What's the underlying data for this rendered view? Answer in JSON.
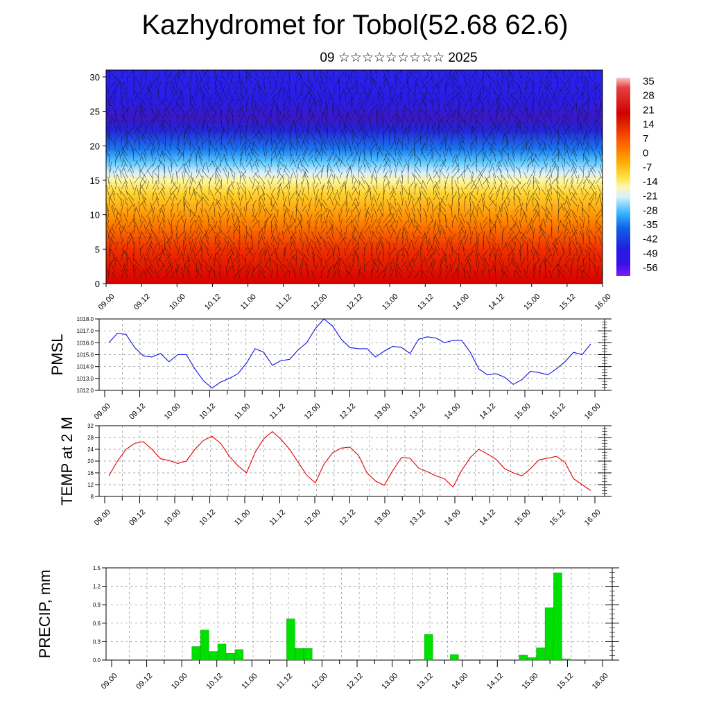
{
  "title": "Kazhydromet for Tobol(52.68 62.6)",
  "subtitle": "09 ☆☆☆☆☆☆☆☆☆ 2025",
  "time_labels": [
    "09.00",
    "09.12",
    "10.00",
    "10.12",
    "11.00",
    "11.12",
    "12.00",
    "12.12",
    "13.00",
    "13.12",
    "14.00",
    "14.12",
    "15.00",
    "15.12",
    "16.00"
  ],
  "chart_data": [
    {
      "type": "heatmap",
      "panel": "cross-section",
      "x": [
        "09.00",
        "09.12",
        "10.00",
        "10.12",
        "11.00",
        "11.12",
        "12.00",
        "12.12",
        "13.00",
        "13.12",
        "14.00",
        "14.12",
        "15.00",
        "15.12",
        "16.00"
      ],
      "y_ticks": [
        0,
        5,
        10,
        15,
        20,
        25,
        30
      ],
      "ylim": [
        0,
        31
      ],
      "colorbar_labels": [
        "35",
        "28",
        "21",
        "14",
        "7",
        "0",
        "-7",
        "-14",
        "-21",
        "-28",
        "-35",
        "-42",
        "-49",
        "-56"
      ],
      "colorbar_range": [
        -63,
        42
      ],
      "overlay": "wind vectors",
      "colors": {
        "cold": "#2a10e0",
        "mid": "#ffe75a",
        "warm": "#d40000"
      }
    },
    {
      "type": "line",
      "panel": "pmsl",
      "ylabel": "PMSL",
      "ylim": [
        1012.0,
        1018.0
      ],
      "y_ticks": [
        "1012.0",
        "1013.0",
        "1014.0",
        "1015.0",
        "1016.0",
        "1017.0",
        "1018.0"
      ],
      "x_ticks": [
        "09.00",
        "09.12",
        "10.00",
        "10.12",
        "11.00",
        "11.12",
        "12.00",
        "12.12",
        "13.00",
        "13.12",
        "14.00",
        "14.12",
        "15.00",
        "15.12",
        "16.00"
      ],
      "values": [
        1016.0,
        1016.8,
        1016.7,
        1015.6,
        1014.9,
        1014.8,
        1015.1,
        1014.4,
        1015.0,
        1015.0,
        1013.8,
        1012.8,
        1012.2,
        1012.7,
        1013.0,
        1013.4,
        1014.3,
        1015.5,
        1015.2,
        1014.1,
        1014.5,
        1014.6,
        1015.4,
        1016.0,
        1017.2,
        1018.0,
        1017.4,
        1016.3,
        1015.6,
        1015.5,
        1015.5,
        1014.8,
        1015.3,
        1015.7,
        1015.6,
        1015.1,
        1016.3,
        1016.5,
        1016.4,
        1016.0,
        1016.2,
        1016.2,
        1015.2,
        1013.8,
        1013.3,
        1013.4,
        1013.1,
        1012.5,
        1012.9,
        1013.6,
        1013.5,
        1013.3,
        1013.8,
        1014.4,
        1015.2,
        1015.0,
        1015.9
      ],
      "color": "#1010e0"
    },
    {
      "type": "line",
      "panel": "temp2m",
      "ylabel": "TEMP at 2 M",
      "ylim": [
        8,
        32
      ],
      "y_ticks": [
        "8",
        "12",
        "16",
        "20",
        "24",
        "28",
        "32"
      ],
      "x_ticks": [
        "09.00",
        "09.12",
        "10.00",
        "10.12",
        "11.00",
        "11.12",
        "12.00",
        "12.12",
        "13.00",
        "13.12",
        "14.00",
        "14.12",
        "15.00",
        "15.12",
        "16.00"
      ],
      "values": [
        15.0,
        20.0,
        24.0,
        26.0,
        26.6,
        24.0,
        20.8,
        20.2,
        19.2,
        20.0,
        24.0,
        27.0,
        28.4,
        26.0,
        21.6,
        18.4,
        16.0,
        23.0,
        27.6,
        30.0,
        27.4,
        24.0,
        19.6,
        15.2,
        12.6,
        19.0,
        22.8,
        24.4,
        24.7,
        22.0,
        16.0,
        13.2,
        11.8,
        16.8,
        21.2,
        21.0,
        17.6,
        16.4,
        15.0,
        14.0,
        11.2,
        16.8,
        21.2,
        24.0,
        22.4,
        20.6,
        17.4,
        16.0,
        15.0,
        17.4,
        20.4,
        21.0,
        21.6,
        19.6,
        14.0,
        12.0,
        10.0
      ],
      "color": "#e00000"
    },
    {
      "type": "bar",
      "panel": "precip",
      "ylabel": "PRECIP, mm",
      "ylim": [
        0,
        1.5
      ],
      "y_ticks": [
        "0.0",
        "0.3",
        "0.6",
        "0.9",
        "1.2",
        "1.5"
      ],
      "x_ticks": [
        "09.00",
        "09.12",
        "10.00",
        "10.12",
        "11.00",
        "11.12",
        "12.00",
        "12.12",
        "13.00",
        "13.12",
        "14.00",
        "14.12",
        "15.00",
        "15.12",
        "16.00"
      ],
      "values": [
        0,
        0,
        0,
        0,
        0,
        0,
        0,
        0,
        0,
        0.22,
        0.49,
        0.14,
        0.26,
        0.11,
        0.17,
        0,
        0,
        0,
        0,
        0,
        0.67,
        0.19,
        0.19,
        0,
        0,
        0,
        0,
        0,
        0,
        0,
        0,
        0,
        0,
        0,
        0,
        0.01,
        0.42,
        0,
        0,
        0.09,
        0,
        0,
        0,
        0,
        0,
        0,
        0,
        0.08,
        0.04,
        0.2,
        0.85,
        1.42,
        0.02,
        0,
        0,
        0
      ],
      "color": "#00e000"
    }
  ]
}
